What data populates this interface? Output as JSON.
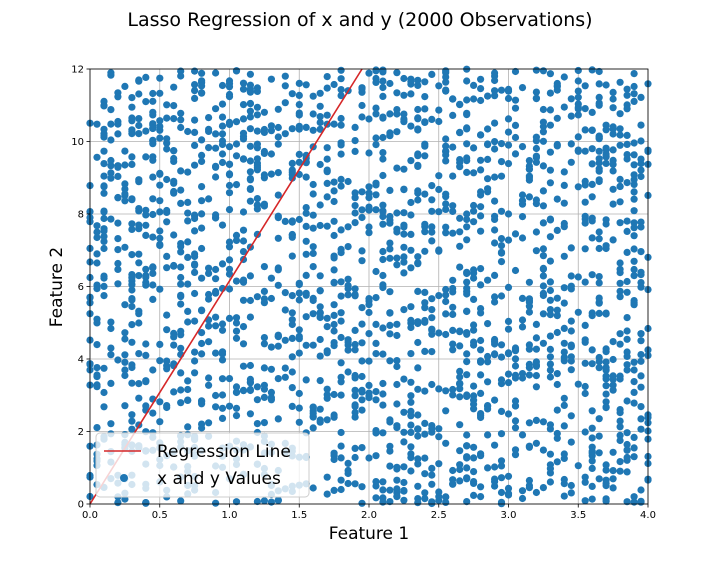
{
  "chart_data": {
    "type": "scatter",
    "title": "Lasso Regression of x and y (2000 Observations)",
    "xlabel": "Feature 1",
    "ylabel": "Feature 2",
    "xlim": [
      0.0,
      4.0
    ],
    "ylim": [
      0,
      12
    ],
    "x_ticks": [
      "0.0",
      "0.5",
      "1.0",
      "1.5",
      "2.0",
      "2.5",
      "3.0",
      "3.5",
      "4.0"
    ],
    "y_ticks": [
      "0",
      "2",
      "4",
      "6",
      "8",
      "10",
      "12"
    ],
    "grid": true,
    "legend_position": "lower-left",
    "legend": [
      "Regression Line",
      "x and y Values"
    ],
    "colors": {
      "points": "#1f77b4",
      "line": "#d62728"
    },
    "regression_line": {
      "name": "Regression Line",
      "x": [
        0.0,
        1.95
      ],
      "y": [
        0.0,
        12.0
      ]
    },
    "scatter": {
      "name": "x and y Values",
      "n": 2000,
      "x_distribution": "uniform over columns spaced 0.05 apart, 0.0 to 4.0",
      "y_distribution": "uniform, 0 to 12"
    }
  }
}
